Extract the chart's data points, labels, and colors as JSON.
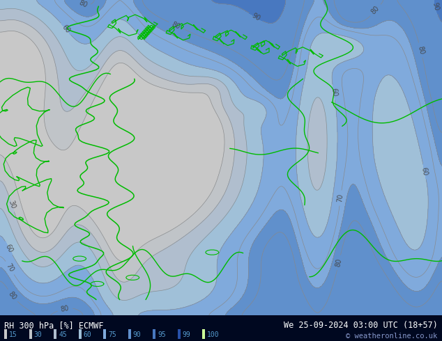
{
  "title_left": "RH 300 hPa [%] ECMWF",
  "title_right": "We 25-09-2024 03:00 UTC (18+57)",
  "copyright": "© weatheronline.co.uk",
  "levels": [
    0,
    15,
    30,
    45,
    60,
    75,
    90,
    95,
    99,
    101
  ],
  "colors": [
    "#c8c8c8",
    "#c0c4c8",
    "#b0bece",
    "#a0c0d8",
    "#80aadc",
    "#6090cc",
    "#4878c0",
    "#2850a8",
    "#ccff99"
  ],
  "contour_levels": [
    15,
    30,
    45,
    60,
    70,
    75,
    80,
    90,
    95
  ],
  "contour_color": "#888888",
  "coast_color": "#00bb00",
  "bottom_bg": "#000820",
  "bottom_text_color": "#ffffff",
  "legend_text_color": "#5599cc",
  "copyright_color": "#8899cc",
  "legend_levels": [
    15,
    30,
    45,
    60,
    75,
    90,
    95,
    99,
    100
  ],
  "legend_colors": [
    "#c8c8c8",
    "#c0c4c8",
    "#b0bece",
    "#a0c0d8",
    "#80aadc",
    "#6090cc",
    "#4878c0",
    "#2850a8",
    "#ccff99"
  ],
  "figsize": [
    6.34,
    4.9
  ],
  "dpi": 100
}
